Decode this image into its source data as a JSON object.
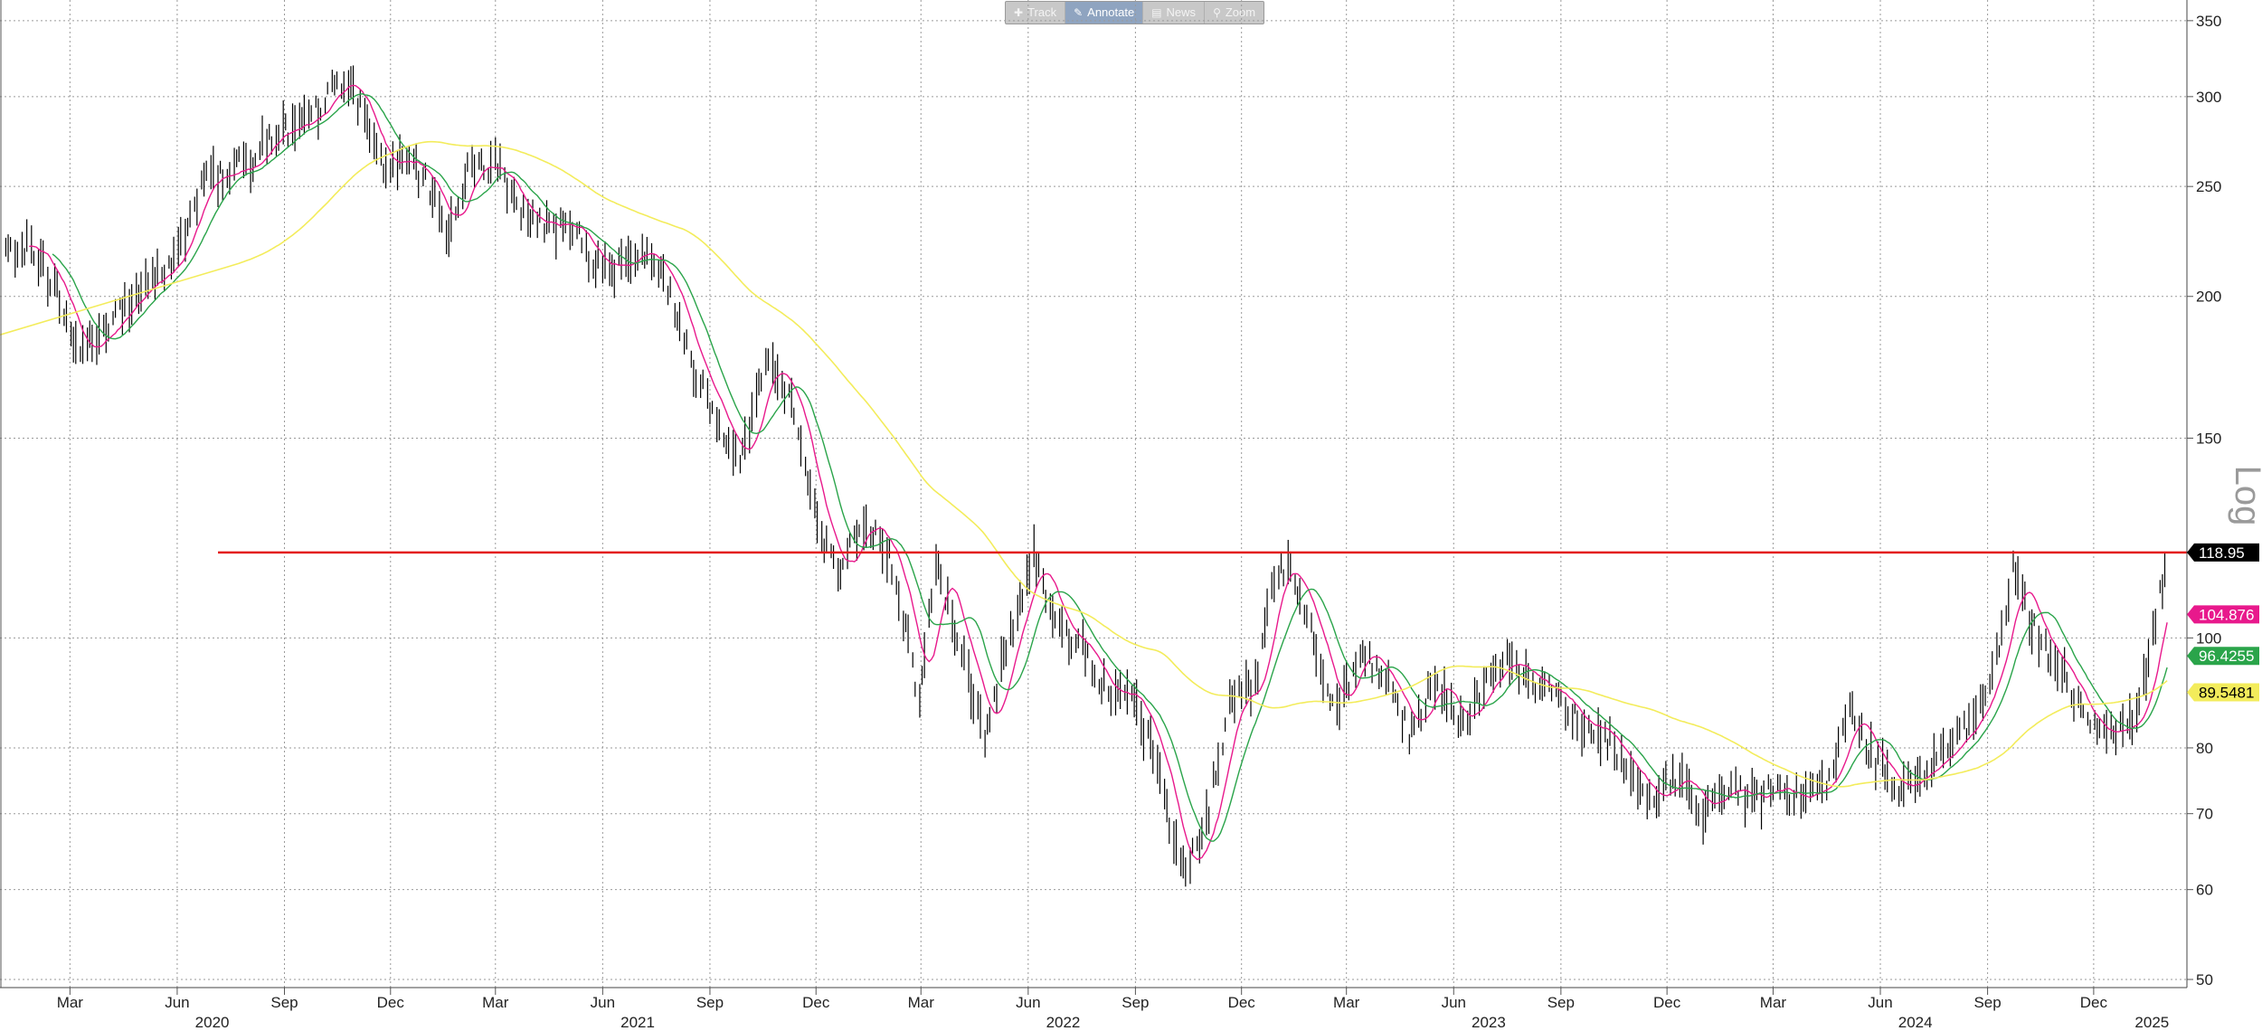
{
  "toolbar": {
    "buttons": [
      {
        "label": "Track",
        "icon": "crosshair-icon",
        "glyph": "✚",
        "active": false
      },
      {
        "label": "Annotate",
        "icon": "pencil-icon",
        "glyph": "✎",
        "active": true
      },
      {
        "label": "News",
        "icon": "news-icon",
        "glyph": "▤",
        "active": false
      },
      {
        "label": "Zoom",
        "icon": "magnifier-icon",
        "glyph": "⚲",
        "active": false
      }
    ]
  },
  "chart_data": {
    "type": "line",
    "scale": "log",
    "scale_label": "Log",
    "ylim": [
      50,
      365
    ],
    "y_ticks": [
      50,
      60,
      70,
      80,
      100,
      150,
      200,
      250,
      300,
      350
    ],
    "x_month_ticks": [
      {
        "label": "Mar",
        "date": "2020-03-01"
      },
      {
        "label": "Jun",
        "date": "2020-06-01"
      },
      {
        "label": "Sep",
        "date": "2020-09-01"
      },
      {
        "label": "Dec",
        "date": "2020-12-01"
      },
      {
        "label": "Mar",
        "date": "2021-03-01"
      },
      {
        "label": "Jun",
        "date": "2021-06-01"
      },
      {
        "label": "Sep",
        "date": "2021-09-01"
      },
      {
        "label": "Dec",
        "date": "2021-12-01"
      },
      {
        "label": "Mar",
        "date": "2022-03-01"
      },
      {
        "label": "Jun",
        "date": "2022-06-01"
      },
      {
        "label": "Sep",
        "date": "2022-09-01"
      },
      {
        "label": "Dec",
        "date": "2022-12-01"
      },
      {
        "label": "Mar",
        "date": "2023-03-01"
      },
      {
        "label": "Jun",
        "date": "2023-06-01"
      },
      {
        "label": "Sep",
        "date": "2023-09-01"
      },
      {
        "label": "Dec",
        "date": "2023-12-01"
      },
      {
        "label": "Mar",
        "date": "2024-03-01"
      },
      {
        "label": "Jun",
        "date": "2024-06-01"
      },
      {
        "label": "Sep",
        "date": "2024-09-01"
      },
      {
        "label": "Dec",
        "date": "2024-12-01"
      }
    ],
    "x_year_labels": [
      {
        "label": "2020",
        "date": "2020-07-01"
      },
      {
        "label": "2021",
        "date": "2021-07-01"
      },
      {
        "label": "2022",
        "date": "2022-07-01"
      },
      {
        "label": "2023",
        "date": "2023-07-01"
      },
      {
        "label": "2024",
        "date": "2024-07-01"
      },
      {
        "label": "2025",
        "date": "2025-01-20"
      }
    ],
    "price_points": [
      [
        "2020-01-06",
        220
      ],
      [
        "2020-01-27",
        222
      ],
      [
        "2020-02-17",
        204
      ],
      [
        "2020-03-09",
        178
      ],
      [
        "2020-03-30",
        186
      ],
      [
        "2020-04-20",
        198
      ],
      [
        "2020-05-11",
        206
      ],
      [
        "2020-06-01",
        218
      ],
      [
        "2020-06-22",
        252
      ],
      [
        "2020-07-13",
        258
      ],
      [
        "2020-08-03",
        263
      ],
      [
        "2020-08-24",
        280
      ],
      [
        "2020-09-14",
        280
      ],
      [
        "2020-10-05",
        298
      ],
      [
        "2020-10-19",
        312
      ],
      [
        "2020-11-02",
        298
      ],
      [
        "2020-11-23",
        262
      ],
      [
        "2020-12-14",
        262
      ],
      [
        "2021-01-04",
        250
      ],
      [
        "2021-01-18",
        228
      ],
      [
        "2021-02-08",
        262
      ],
      [
        "2021-03-01",
        262
      ],
      [
        "2021-03-22",
        236
      ],
      [
        "2021-04-12",
        230
      ],
      [
        "2021-05-03",
        234
      ],
      [
        "2021-05-24",
        214
      ],
      [
        "2021-06-14",
        212
      ],
      [
        "2021-07-05",
        222
      ],
      [
        "2021-07-26",
        206
      ],
      [
        "2021-08-16",
        175
      ],
      [
        "2021-09-06",
        158
      ],
      [
        "2021-09-27",
        142
      ],
      [
        "2021-10-18",
        176
      ],
      [
        "2021-11-08",
        165
      ],
      [
        "2021-11-29",
        130
      ],
      [
        "2021-12-20",
        112
      ],
      [
        "2022-01-10",
        128
      ],
      [
        "2022-01-31",
        120
      ],
      [
        "2022-02-14",
        104
      ],
      [
        "2022-02-28",
        88
      ],
      [
        "2022-03-14",
        118
      ],
      [
        "2022-04-04",
        98
      ],
      [
        "2022-04-25",
        82
      ],
      [
        "2022-05-16",
        100
      ],
      [
        "2022-06-06",
        118
      ],
      [
        "2022-06-27",
        102
      ],
      [
        "2022-07-18",
        98
      ],
      [
        "2022-08-08",
        90
      ],
      [
        "2022-08-29",
        88
      ],
      [
        "2022-09-19",
        78
      ],
      [
        "2022-10-10",
        62
      ],
      [
        "2022-10-31",
        68
      ],
      [
        "2022-11-21",
        88
      ],
      [
        "2022-12-12",
        90
      ],
      [
        "2022-12-26",
        112
      ],
      [
        "2023-01-09",
        116
      ],
      [
        "2023-01-30",
        102
      ],
      [
        "2023-02-20",
        86
      ],
      [
        "2023-03-13",
        98
      ],
      [
        "2023-04-03",
        92
      ],
      [
        "2023-04-24",
        82
      ],
      [
        "2023-05-15",
        92
      ],
      [
        "2023-06-05",
        84
      ],
      [
        "2023-06-26",
        90
      ],
      [
        "2023-07-17",
        96
      ],
      [
        "2023-08-07",
        92
      ],
      [
        "2023-08-28",
        88
      ],
      [
        "2023-09-18",
        84
      ],
      [
        "2023-10-09",
        82
      ],
      [
        "2023-10-30",
        76
      ],
      [
        "2023-11-20",
        72
      ],
      [
        "2023-12-11",
        76
      ],
      [
        "2024-01-01",
        70
      ],
      [
        "2024-01-22",
        74
      ],
      [
        "2024-02-12",
        72
      ],
      [
        "2024-03-04",
        74
      ],
      [
        "2024-03-25",
        72
      ],
      [
        "2024-04-15",
        74
      ],
      [
        "2024-05-06",
        86
      ],
      [
        "2024-05-27",
        78
      ],
      [
        "2024-06-17",
        74
      ],
      [
        "2024-07-08",
        76
      ],
      [
        "2024-07-29",
        80
      ],
      [
        "2024-08-19",
        84
      ],
      [
        "2024-09-09",
        96
      ],
      [
        "2024-09-23",
        114
      ],
      [
        "2024-10-14",
        100
      ],
      [
        "2024-11-04",
        94
      ],
      [
        "2024-11-25",
        84
      ],
      [
        "2024-12-16",
        82
      ],
      [
        "2025-01-06",
        84
      ],
      [
        "2025-01-20",
        100
      ],
      [
        "2025-02-03",
        119
      ]
    ],
    "series": [
      {
        "key": "pink",
        "color": "#e8198c",
        "window": 20,
        "last_value": "104.876"
      },
      {
        "key": "green",
        "color": "#2aa44a",
        "window": 40,
        "last_value": "96.4255"
      },
      {
        "key": "yellow",
        "color": "#f3ec5b",
        "window": 200,
        "last_value": "89.5481"
      }
    ],
    "horizontal_line": {
      "value": 118.95,
      "label": "118.95",
      "color": "#e31b1b",
      "start_date": "2020-07-06"
    },
    "grid": true,
    "legend": "none"
  }
}
